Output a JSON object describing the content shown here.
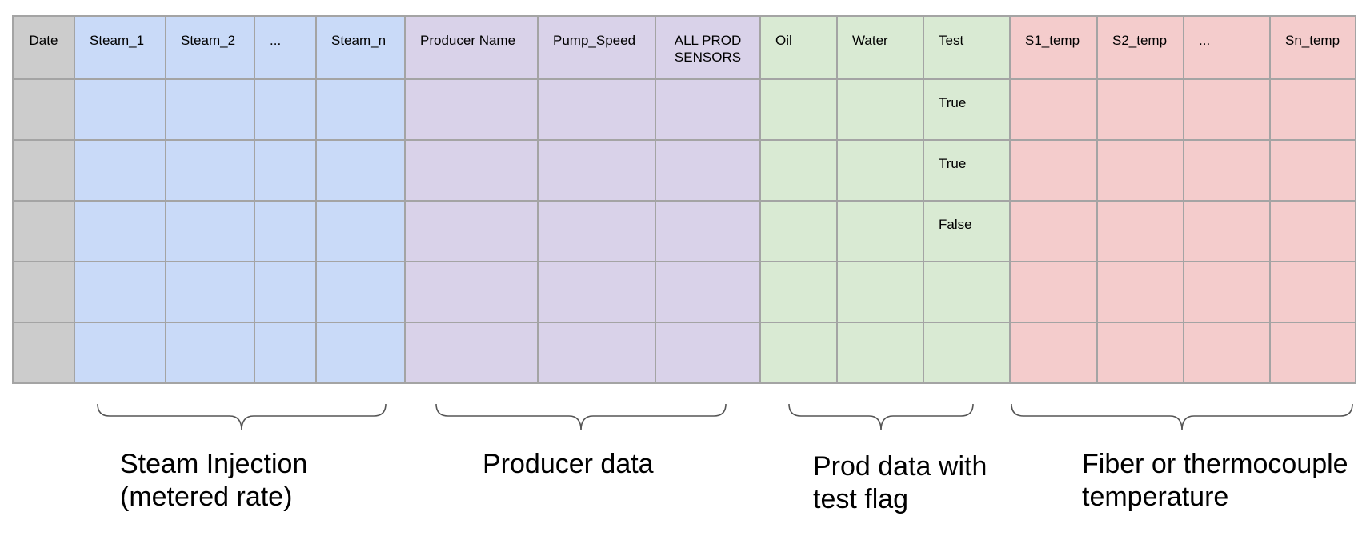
{
  "table": {
    "headers": [
      "Date",
      "Steam_1",
      "Steam_2",
      "...",
      "Steam_n",
      "Producer Name",
      "Pump_Speed",
      "ALL PROD\nSENSORS",
      "Oil",
      "Water",
      "Test",
      "S1_temp",
      "S2_temp",
      "...",
      "Sn_temp"
    ],
    "test_flags": [
      "True",
      "True",
      "False",
      "",
      ""
    ]
  },
  "groups": {
    "steam": "Steam Injection\n(metered rate)",
    "producer": "Producer data",
    "prod_test": "Prod data with\ntest flag",
    "temperature": "Fiber or thermocouple\ntemperature"
  },
  "colors": {
    "date": "#cccccc",
    "steam": "#c9daf8",
    "producer": "#d9d2e9",
    "prod_test": "#d9ead3",
    "temperature": "#f4cccc",
    "grid_line": "#a4a4a4"
  }
}
